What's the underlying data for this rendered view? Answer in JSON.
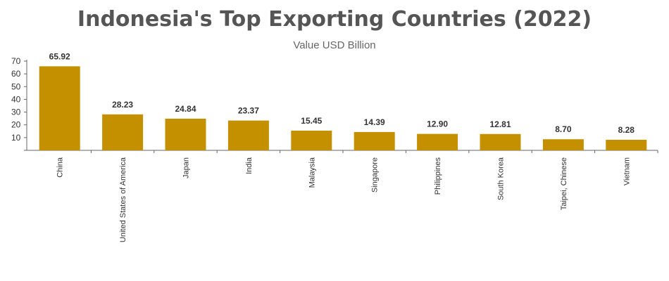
{
  "chart_data": {
    "type": "bar",
    "title": "Indonesia's Top Exporting Countries (2022)",
    "subtitle": "Value USD Billion",
    "categories": [
      "China",
      "United States of America",
      "Japan",
      "India",
      "Malaysia",
      "Singapore",
      "Philippines",
      "South Korea",
      "Taipei, Chinese",
      "Vietnam"
    ],
    "values": [
      65.92,
      28.23,
      24.84,
      23.37,
      15.45,
      14.39,
      12.9,
      12.81,
      8.7,
      8.28
    ],
    "data_labels": [
      "65.92",
      "28.23",
      "24.84",
      "23.37",
      "15.45",
      "14.39",
      "12.90",
      "12.81",
      "8.70",
      "8.28"
    ],
    "yticks": [
      10,
      20,
      30,
      40,
      50,
      60,
      70
    ],
    "ylim": [
      0,
      70
    ],
    "xlabel": "",
    "ylabel": "",
    "grid": false,
    "legend": "none",
    "bar_color": "#c49000"
  }
}
